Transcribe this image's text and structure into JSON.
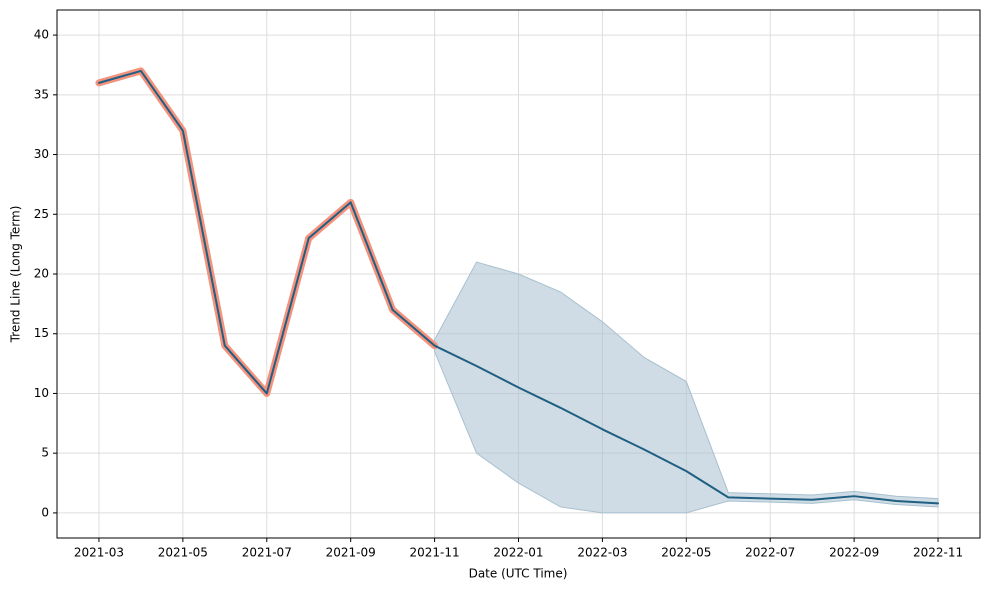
{
  "chart_data": {
    "type": "line",
    "x_label": "Date (UTC Time)",
    "y_label": "Trend Line (Long Term)",
    "x": [
      "2021-03",
      "2021-04",
      "2021-05",
      "2021-06",
      "2021-07",
      "2021-08",
      "2021-09",
      "2021-10",
      "2021-11",
      "2021-12",
      "2022-01",
      "2022-02",
      "2022-03",
      "2022-04",
      "2022-05",
      "2022-06",
      "2022-07",
      "2022-08",
      "2022-09",
      "2022-10",
      "2022-11"
    ],
    "series": [
      {
        "color": "#f4927d",
        "values": [
          36,
          37,
          32,
          14,
          10,
          23,
          26,
          17,
          14,
          null,
          null,
          null,
          null,
          null,
          null,
          null,
          null,
          null,
          null,
          null,
          null
        ]
      },
      {
        "color": "#1f5f82",
        "values": [
          36,
          37,
          32,
          14,
          10,
          23,
          26,
          17,
          14,
          12.3,
          10.5,
          8.8,
          7.0,
          5.3,
          3.5,
          1.3,
          1.2,
          1.1,
          1.4,
          1.0,
          0.8
        ]
      }
    ],
    "band": {
      "color": "#a8c0cf",
      "upper": [
        null,
        null,
        null,
        null,
        null,
        null,
        null,
        null,
        14.5,
        21,
        20,
        18.5,
        16,
        13,
        11,
        1.7,
        1.6,
        1.5,
        1.8,
        1.4,
        1.2
      ],
      "lower": [
        null,
        null,
        null,
        null,
        null,
        null,
        null,
        null,
        13.5,
        5,
        2.5,
        0.5,
        0,
        0,
        0,
        1.0,
        0.9,
        0.8,
        1.1,
        0.7,
        0.5
      ]
    },
    "xlim": [
      "2021-02",
      "2022-12"
    ],
    "xticks": [
      "2021-03",
      "2021-05",
      "2021-07",
      "2021-09",
      "2021-11",
      "2022-01",
      "2022-03",
      "2022-05",
      "2022-07",
      "2022-09",
      "2022-11"
    ],
    "ylim": [
      -2.1,
      42.1
    ],
    "yticks": [
      0,
      5,
      10,
      15,
      20,
      25,
      30,
      35,
      40
    ],
    "grid": true
  }
}
